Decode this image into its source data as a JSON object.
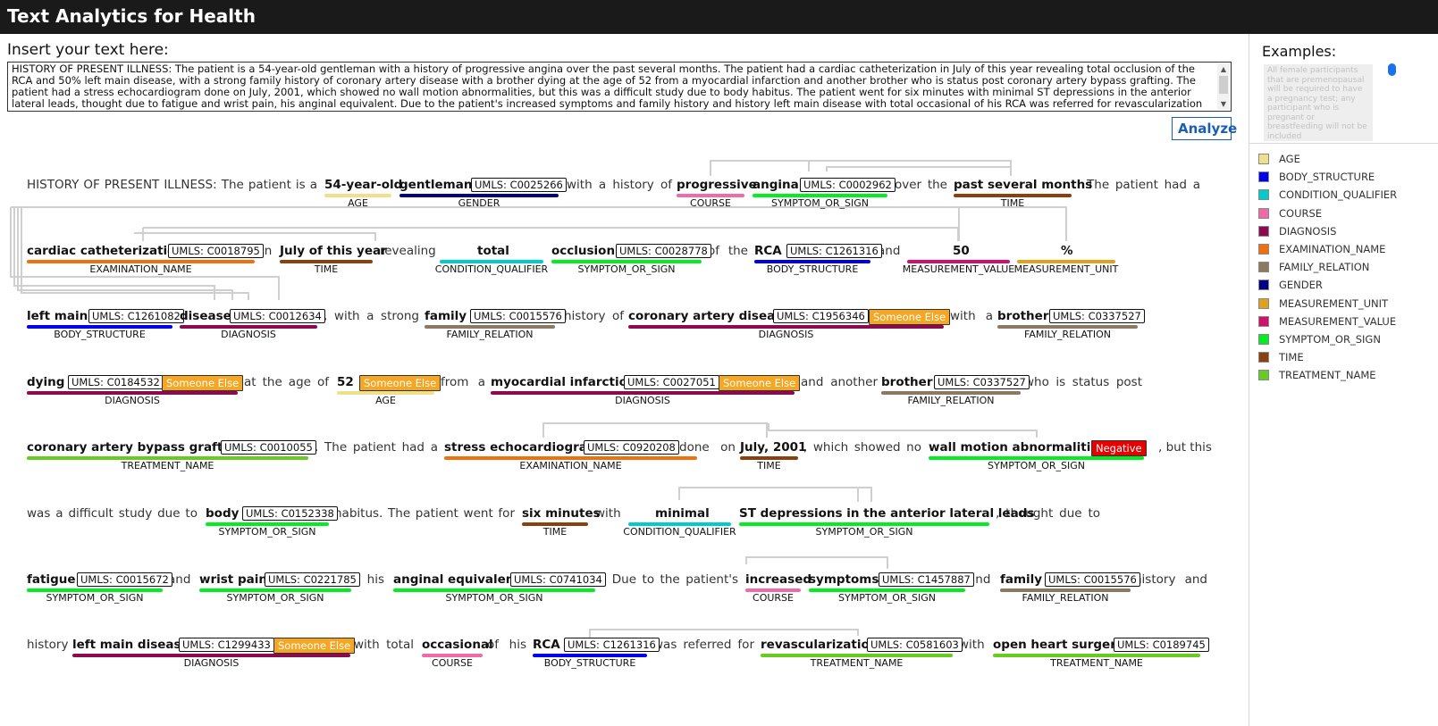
{
  "app": {
    "title": "Text Analytics for Health"
  },
  "input": {
    "label": "Insert your text here:",
    "value": "HISTORY OF PRESENT ILLNESS: The patient is a 54-year-old gentleman with a history of progressive angina over the past several months. The patient had a cardiac catheterization in July of this year revealing total occlusion of the RCA and 50% left main disease, with a strong family history of coronary artery disease with a brother dying at the age of 52 from a myocardial infarction and another brother who is status post coronary artery bypass grafting. The patient had a stress echocardiogram done on July, 2001, which showed no wall motion abnormalities, but this was a difficult study due to body habitus. The patient went for six minutes with minimal ST depressions in the anterior lateral leads, thought due to fatigue and wrist pain, his anginal equivalent. Due to the patient's increased symptoms and family history and history left main disease with total occasional of his RCA was referred for revascularization with open heart surgery."
  },
  "analyze_button": {
    "label": "Analyze"
  },
  "examples": {
    "label": "Examples:",
    "card_text": "All female participants that are premenopausal will be required to have a pregnancy test; any participant who is pregnant or breastfeeding will not be included"
  },
  "legend": [
    {
      "label": "AGE",
      "color": "#f0e08c"
    },
    {
      "label": "BODY_STRUCTURE",
      "color": "#0000ee"
    },
    {
      "label": "CONDITION_QUALIFIER",
      "color": "#00cccc"
    },
    {
      "label": "COURSE",
      "color": "#f06aa8"
    },
    {
      "label": "DIAGNOSIS",
      "color": "#8b0a50"
    },
    {
      "label": "EXAMINATION_NAME",
      "color": "#f07010"
    },
    {
      "label": "FAMILY_RELATION",
      "color": "#8b7960"
    },
    {
      "label": "GENDER",
      "color": "#000080"
    },
    {
      "label": "MEASUREMENT_UNIT",
      "color": "#e0a020"
    },
    {
      "label": "MEASUREMENT_VALUE",
      "color": "#d0106a"
    },
    {
      "label": "SYMPTOM_OR_SIGN",
      "color": "#00ee22"
    },
    {
      "label": "TIME",
      "color": "#8b4010"
    },
    {
      "label": "TREATMENT_NAME",
      "color": "#66cc22"
    }
  ],
  "viz": {
    "texts": [
      "HISTORY OF PRESENT ILLNESS: The patient is a",
      "with a history of",
      "over the",
      ". The patient had a",
      "in",
      "revealing",
      "of the",
      "and",
      ", with a strong",
      "history of",
      "with a",
      "at the age of",
      "from a",
      "and another",
      "who is status post",
      ". The patient had a",
      "done on",
      ", which showed no",
      ", but this",
      "was a difficult study due to",
      "habitus. The patient went for",
      "with",
      ", thought due to",
      "and",
      ", his",
      ". Due to the patient's",
      "and",
      "history and",
      "history",
      "with total",
      "of his",
      "was referred for",
      "with",
      "."
    ],
    "entities": [
      {
        "text": "54-year-old",
        "category": "AGE",
        "color": "#f0e08c"
      },
      {
        "text": "gentleman",
        "category": "GENDER",
        "color": "#000080",
        "umls": "UMLS: C0025266"
      },
      {
        "text": "progressive",
        "category": "COURSE",
        "color": "#f06aa8"
      },
      {
        "text": "angina",
        "category": "SYMPTOM_OR_SIGN",
        "color": "#00ee22",
        "umls": "UMLS: C0002962"
      },
      {
        "text": "past several months",
        "category": "TIME",
        "color": "#8b4010"
      },
      {
        "text": "cardiac catheterization",
        "category": "EXAMINATION_NAME",
        "color": "#f07010",
        "umls": "UMLS: C0018795"
      },
      {
        "text": "July of this year",
        "category": "TIME",
        "color": "#8b4010"
      },
      {
        "text": "total",
        "category": "CONDITION_QUALIFIER",
        "color": "#00cccc"
      },
      {
        "text": "occlusion",
        "category": "SYMPTOM_OR_SIGN",
        "color": "#00ee22",
        "umls": "UMLS: C0028778"
      },
      {
        "text": "RCA",
        "category": "BODY_STRUCTURE",
        "color": "#0000ee",
        "umls": "UMLS: C1261316"
      },
      {
        "text": "50",
        "category": "MEASUREMENT_VALUE",
        "color": "#d0106a"
      },
      {
        "text": "%",
        "category": "MEASUREMENT_UNIT",
        "color": "#e0a020"
      },
      {
        "text": "left main",
        "category": "BODY_STRUCTURE",
        "color": "#0000ee",
        "umls": "UMLS: C1261082"
      },
      {
        "text": "disease",
        "category": "DIAGNOSIS",
        "color": "#8b0a50",
        "umls": "UMLS: C0012634"
      },
      {
        "text": "family",
        "category": "FAMILY_RELATION",
        "color": "#8b7960",
        "umls": "UMLS: C0015576"
      },
      {
        "text": "coronary artery disease",
        "category": "DIAGNOSIS",
        "color": "#8b0a50",
        "umls": "UMLS: C1956346",
        "badge": "Someone Else"
      },
      {
        "text": "brother",
        "category": "FAMILY_RELATION",
        "color": "#8b7960",
        "umls": "UMLS: C0337527"
      },
      {
        "text": "dying",
        "category": "DIAGNOSIS",
        "color": "#8b0a50",
        "umls": "UMLS: C0184532",
        "badge": "Someone Else"
      },
      {
        "text": "52",
        "category": "AGE",
        "color": "#f0e08c",
        "badge": "Someone Else"
      },
      {
        "text": "myocardial infarction",
        "category": "DIAGNOSIS",
        "color": "#8b0a50",
        "umls": "UMLS: C0027051",
        "badge": "Someone Else"
      },
      {
        "text": "brother",
        "category": "FAMILY_RELATION",
        "color": "#8b7960",
        "umls": "UMLS: C0337527"
      },
      {
        "text": "coronary artery bypass grafting",
        "category": "TREATMENT_NAME",
        "color": "#66cc22",
        "umls": "UMLS: C0010055"
      },
      {
        "text": "stress echocardiogram",
        "category": "EXAMINATION_NAME",
        "color": "#f07010",
        "umls": "UMLS: C0920208"
      },
      {
        "text": "July, 2001",
        "category": "TIME",
        "color": "#8b4010"
      },
      {
        "text": "wall motion abnormalities",
        "category": "SYMPTOM_OR_SIGN",
        "color": "#00ee22",
        "badge": "Negative"
      },
      {
        "text": "body",
        "category": "SYMPTOM_OR_SIGN",
        "color": "#00ee22",
        "umls": "UMLS: C0152338"
      },
      {
        "text": "six minutes",
        "category": "TIME",
        "color": "#8b4010"
      },
      {
        "text": "minimal",
        "category": "CONDITION_QUALIFIER",
        "color": "#00cccc"
      },
      {
        "text": "ST depressions in the anterior lateral leads",
        "category": "SYMPTOM_OR_SIGN",
        "color": "#00ee22"
      },
      {
        "text": "fatigue",
        "category": "SYMPTOM_OR_SIGN",
        "color": "#00ee22",
        "umls": "UMLS: C0015672"
      },
      {
        "text": "wrist pain",
        "category": "SYMPTOM_OR_SIGN",
        "color": "#00ee22",
        "umls": "UMLS: C0221785"
      },
      {
        "text": "anginal equivalent",
        "category": "SYMPTOM_OR_SIGN",
        "color": "#00ee22",
        "umls": "UMLS: C0741034"
      },
      {
        "text": "increased",
        "category": "COURSE",
        "color": "#f06aa8"
      },
      {
        "text": "symptoms",
        "category": "SYMPTOM_OR_SIGN",
        "color": "#00ee22",
        "umls": "UMLS: C1457887"
      },
      {
        "text": "family",
        "category": "FAMILY_RELATION",
        "color": "#8b7960",
        "umls": "UMLS: C0015576"
      },
      {
        "text": "left main disease",
        "category": "DIAGNOSIS",
        "color": "#8b0a50",
        "umls": "UMLS: C1299433",
        "badge": "Someone Else"
      },
      {
        "text": "occasional",
        "category": "COURSE",
        "color": "#f06aa8"
      },
      {
        "text": "RCA",
        "category": "BODY_STRUCTURE",
        "color": "#0000ee",
        "umls": "UMLS: C1261316"
      },
      {
        "text": "revascularization",
        "category": "TREATMENT_NAME",
        "color": "#66cc22",
        "umls": "UMLS: C0581603"
      },
      {
        "text": "open heart surgery",
        "category": "TREATMENT_NAME",
        "color": "#66cc22",
        "umls": "UMLS: C0189745"
      }
    ]
  }
}
